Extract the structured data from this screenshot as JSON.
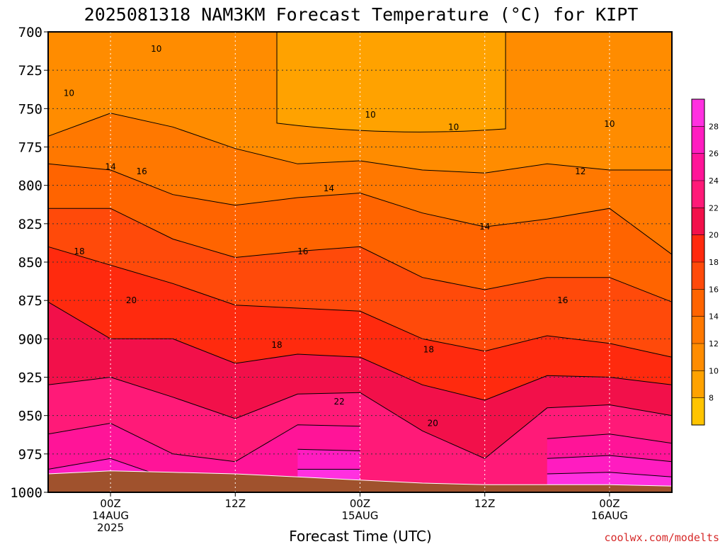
{
  "chart_data": {
    "type": "contour",
    "title": "2025081318 NAM3KM Forecast Temperature (°C) for KIPT",
    "xlabel": "Forecast Time (UTC)",
    "ylabel": "",
    "credit": "coolwx.com/modelts",
    "yticks": [
      "700",
      "725",
      "750",
      "775",
      "800",
      "825",
      "850",
      "875",
      "900",
      "925",
      "950",
      "975",
      "1000"
    ],
    "ytick_values": [
      700,
      725,
      750,
      775,
      800,
      825,
      850,
      875,
      900,
      925,
      950,
      975,
      1000
    ],
    "ylim": [
      1000,
      700
    ],
    "xlim_hours": [
      0,
      60
    ],
    "xticks": [
      {
        "hour": 6,
        "lines": [
          "00Z",
          "14AUG",
          "2025"
        ]
      },
      {
        "hour": 18,
        "lines": [
          "12Z",
          "",
          ""
        ]
      },
      {
        "hour": 30,
        "lines": [
          "00Z",
          "15AUG",
          ""
        ]
      },
      {
        "hour": 42,
        "lines": [
          "12Z",
          "",
          ""
        ]
      },
      {
        "hour": 54,
        "lines": [
          "00Z",
          "16AUG",
          ""
        ]
      }
    ],
    "colorbar": {
      "labels": [
        "8",
        "10",
        "12",
        "14",
        "16",
        "18",
        "20",
        "22",
        "24",
        "26",
        "28"
      ],
      "levels": [
        6,
        8,
        10,
        12,
        14,
        16,
        18,
        20,
        22,
        24,
        26,
        28,
        30
      ],
      "colors": [
        "#ffc400",
        "#ffa200",
        "#ff8c00",
        "#ff7800",
        "#ff6400",
        "#ff4a0a",
        "#ff2a0e",
        "#f2104a",
        "#ff1a78",
        "#ff1498",
        "#ff1cc0",
        "#ff30e0"
      ]
    },
    "contour_labels": [
      {
        "text": "10",
        "hour": 10.4,
        "p": 711
      },
      {
        "text": "10",
        "hour": 2.0,
        "p": 740
      },
      {
        "text": "10",
        "hour": 31.0,
        "p": 754
      },
      {
        "text": "10",
        "hour": 39.0,
        "p": 762
      },
      {
        "text": "10",
        "hour": 54.0,
        "p": 760
      },
      {
        "text": "12",
        "hour": 51.2,
        "p": 791
      },
      {
        "text": "14",
        "hour": 6.0,
        "p": 788
      },
      {
        "text": "16",
        "hour": 9.0,
        "p": 791
      },
      {
        "text": "14",
        "hour": 27.0,
        "p": 802
      },
      {
        "text": "14",
        "hour": 42.0,
        "p": 827
      },
      {
        "text": "18",
        "hour": 3.0,
        "p": 843
      },
      {
        "text": "16",
        "hour": 24.5,
        "p": 843
      },
      {
        "text": "16",
        "hour": 49.5,
        "p": 875
      },
      {
        "text": "20",
        "hour": 8.0,
        "p": 875
      },
      {
        "text": "18",
        "hour": 22.0,
        "p": 904
      },
      {
        "text": "18",
        "hour": 36.6,
        "p": 907
      },
      {
        "text": "22",
        "hour": 28.0,
        "p": 941
      },
      {
        "text": "20",
        "hour": 37.0,
        "p": 955
      }
    ],
    "temperature_bands_by_hour": [
      {
        "hour": 0,
        "band_tops": {
          "12": 768,
          "14": 786,
          "16": 815,
          "18": 840,
          "20": 876,
          "22": 930,
          "24": 962,
          "26": 985,
          "28": 992
        },
        "surface_p": 988
      },
      {
        "hour": 6,
        "band_tops": {
          "12": 753,
          "14": 790,
          "16": 815,
          "18": 852,
          "20": 900,
          "22": 925,
          "24": 955,
          "26": 978,
          "28": 990
        },
        "surface_p": 986
      },
      {
        "hour": 12,
        "band_tops": {
          "12": 762,
          "14": 806,
          "16": 835,
          "18": 864,
          "20": 900,
          "22": 938,
          "24": 975,
          "26": 992
        },
        "surface_p": 987
      },
      {
        "hour": 18,
        "band_tops": {
          "12": 776,
          "14": 813,
          "16": 847,
          "18": 878,
          "20": 916,
          "22": 952,
          "24": 980
        },
        "surface_p": 988
      },
      {
        "hour": 24,
        "band_tops": {
          "12": 786,
          "14": 808,
          "16": 843,
          "18": 880,
          "20": 910,
          "22": 936,
          "24": 956,
          "26": 972,
          "28": 985
        },
        "surface_p": 990
      },
      {
        "hour": 30,
        "band_tops": {
          "12": 784,
          "14": 805,
          "16": 840,
          "18": 882,
          "20": 912,
          "22": 935,
          "24": 957,
          "26": 973,
          "28": 985
        },
        "surface_p": 992
      },
      {
        "hour": 36,
        "band_tops": {
          "12": 790,
          "14": 818,
          "16": 860,
          "18": 900,
          "20": 930,
          "22": 960
        },
        "surface_p": 994
      },
      {
        "hour": 42,
        "band_tops": {
          "12": 792,
          "14": 827,
          "16": 868,
          "18": 908,
          "20": 940,
          "22": 978
        },
        "surface_p": 995
      },
      {
        "hour": 48,
        "band_tops": {
          "12": 786,
          "14": 822,
          "16": 860,
          "18": 898,
          "20": 924,
          "22": 945,
          "24": 965,
          "26": 978,
          "28": 988
        },
        "surface_p": 995
      },
      {
        "hour": 54,
        "band_tops": {
          "12": 790,
          "14": 815,
          "16": 860,
          "18": 903,
          "20": 925,
          "22": 943,
          "24": 962,
          "26": 976,
          "28": 987
        },
        "surface_p": 995
      },
      {
        "hour": 60,
        "band_tops": {
          "12": 790,
          "14": 845,
          "16": 876,
          "18": 912,
          "20": 930,
          "22": 950,
          "24": 968,
          "26": 980,
          "28": 990
        },
        "surface_p": 996
      }
    ],
    "upper_bands": [
      {
        "level": 8,
        "hour_range": [
          22,
          44
        ],
        "p_bottom": 765,
        "p_top": 700
      },
      {
        "level": 10,
        "hour_range": [
          0,
          60
        ],
        "p_bottom": 760,
        "p_top": 700
      }
    ],
    "terrain_color": "#a0522d",
    "grid": true
  }
}
